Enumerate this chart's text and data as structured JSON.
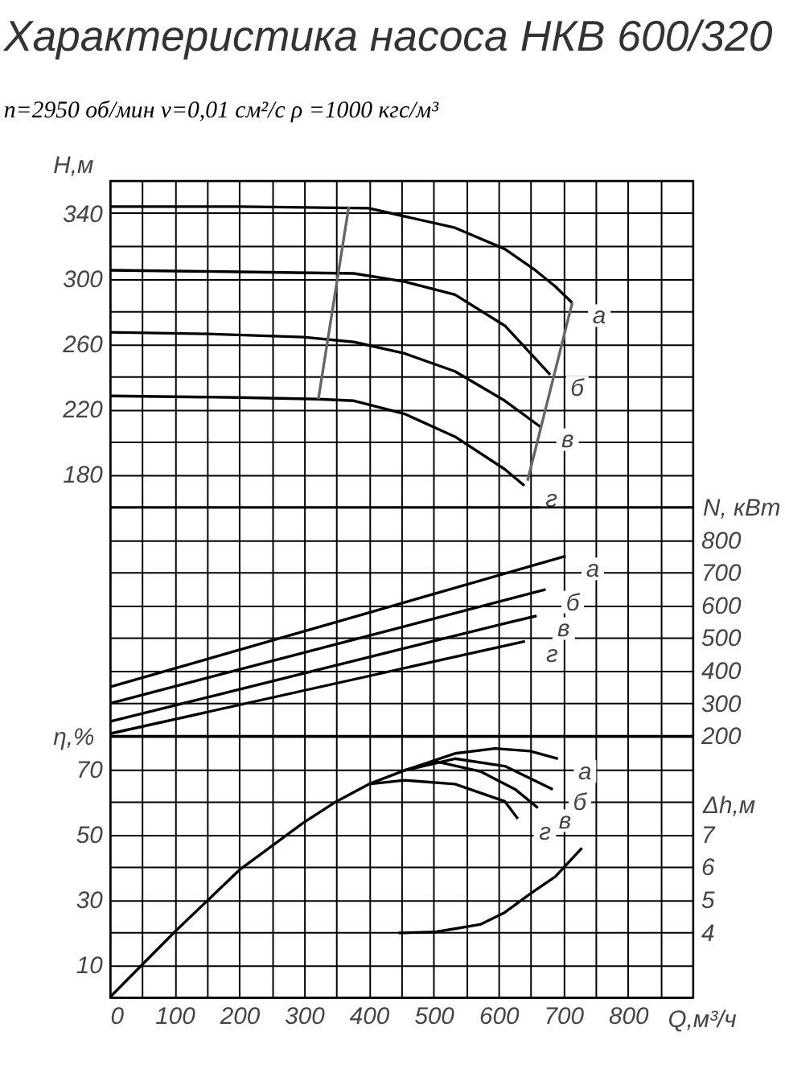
{
  "chart_data": [
    {
      "type": "line",
      "title": "Характеристика насоса НКВ 600/320",
      "subtitle": "n=2950 об/мин   ν=0,01 см²/с   ρ =1000 кгс/м³",
      "ylabel": "H,м",
      "xlim": [
        0,
        900
      ],
      "xticks": [
        0,
        {
          "value": 50,
          "label": null
        },
        100,
        {
          "value": 150,
          "label": null
        },
        200,
        {
          "value": 250,
          "label": null
        },
        300,
        {
          "value": 350,
          "label": null
        },
        400,
        {
          "value": 450,
          "label": null
        },
        500,
        {
          "value": 550,
          "label": null
        },
        600,
        {
          "value": 650,
          "label": null
        },
        700,
        {
          "value": 750,
          "label": null
        },
        800,
        {
          "value": 850,
          "label": null
        },
        {
          "value": 900,
          "label": null
        }
      ],
      "ylim": [
        160,
        360
      ],
      "yticks": [
        {
          "value": 160,
          "label": null
        },
        180,
        {
          "value": 200,
          "label": null
        },
        220,
        {
          "value": 240,
          "label": null
        },
        260,
        {
          "value": 280,
          "label": null
        },
        300,
        {
          "value": 320,
          "label": null
        },
        340,
        {
          "value": 360,
          "label": null
        }
      ],
      "grid": true,
      "tick_labels": "y",
      "marker": "none",
      "series": [
        {
          "name": "а",
          "color": "#000000",
          "x": [
            0,
            200,
            400,
            455,
            533,
            610,
            657,
            688,
            714
          ],
          "values": [
            344,
            344,
            343,
            338,
            331,
            318,
            305,
            295,
            285
          ]
        },
        {
          "name": "б",
          "color": "#000000",
          "x": [
            0,
            200,
            377,
            455,
            533,
            610,
            680
          ],
          "values": [
            305,
            304,
            303,
            298,
            290,
            271,
            241
          ]
        },
        {
          "name": "в",
          "color": "#000000",
          "x": [
            0,
            150,
            299,
            377,
            455,
            533,
            610,
            665
          ],
          "values": [
            267,
            266,
            264,
            261,
            254,
            243,
            225,
            209
          ]
        },
        {
          "name": "г",
          "color": "#000000",
          "x": [
            0,
            200,
            322,
            377,
            455,
            533,
            610,
            640
          ],
          "values": [
            228,
            227,
            226,
            225,
            217,
            203,
            183,
            173
          ]
        },
        {
          "color": "#666666",
          "x": [
            322,
            369
          ],
          "values": [
            226,
            344
          ]
        },
        {
          "color": "#666666",
          "x": [
            645,
            714
          ],
          "values": [
            176,
            285
          ]
        }
      ]
    },
    {
      "type": "line",
      "y2label": "N, кВт",
      "xlim": [
        0,
        900
      ],
      "xticks": [
        0,
        {
          "value": 50,
          "label": null
        },
        100,
        {
          "value": 150,
          "label": null
        },
        200,
        {
          "value": 250,
          "label": null
        },
        300,
        {
          "value": 350,
          "label": null
        },
        400,
        {
          "value": 450,
          "label": null
        },
        500,
        {
          "value": 550,
          "label": null
        },
        600,
        {
          "value": 650,
          "label": null
        },
        700,
        {
          "value": 750,
          "label": null
        },
        800,
        {
          "value": 850,
          "label": null
        },
        {
          "value": 900,
          "label": null
        }
      ],
      "y2lim": [
        200,
        900
      ],
      "y2ticks": [
        200,
        300,
        400,
        500,
        600,
        700,
        800,
        {
          "value": 900,
          "label": null
        }
      ],
      "grid": true,
      "tick_labels": "y",
      "marker": "none",
      "series": [
        {
          "name": "а",
          "color": "#000000",
          "axis": "y2",
          "x": [
            0,
            704
          ],
          "values": [
            348,
            749
          ]
        },
        {
          "name": "б",
          "color": "#000000",
          "axis": "y2",
          "x": [
            0,
            673
          ],
          "values": [
            298,
            647
          ]
        },
        {
          "name": "в",
          "color": "#000000",
          "axis": "y2",
          "x": [
            0,
            610,
            659
          ],
          "values": [
            242,
            543,
            566
          ]
        },
        {
          "name": "г",
          "color": "#000000",
          "axis": "y2",
          "x": [
            0,
            641
          ],
          "values": [
            205,
            488
          ]
        }
      ]
    },
    {
      "type": "line",
      "ylabel": "η,%",
      "y2label": "Δh,м",
      "xlabel": "Q,м³/ч",
      "xlim": [
        0,
        900
      ],
      "xticks": [
        0,
        {
          "value": 50,
          "label": null
        },
        100,
        {
          "value": 150,
          "label": null
        },
        200,
        {
          "value": 250,
          "label": null
        },
        300,
        {
          "value": 350,
          "label": null
        },
        400,
        {
          "value": 450,
          "label": null
        },
        500,
        {
          "value": 550,
          "label": null
        },
        600,
        {
          "value": 650,
          "label": null
        },
        700,
        {
          "value": 750,
          "label": null
        },
        800,
        {
          "value": 850,
          "label": null
        },
        {
          "value": 900,
          "label": null
        }
      ],
      "ylim": [
        0,
        80
      ],
      "yticks": [
        {
          "value": 0,
          "label": null
        },
        10,
        {
          "value": 20,
          "label": null
        },
        30,
        {
          "value": 40,
          "label": null
        },
        50,
        {
          "value": 60,
          "label": null
        },
        70,
        {
          "value": 80,
          "label": null
        }
      ],
      "y2lim": [
        2,
        10
      ],
      "y2ticks": [
        4,
        5,
        6,
        7
      ],
      "grid": true,
      "marker": "none",
      "series": [
        {
          "name": "а",
          "color": "#000000",
          "x": [
            0,
            100,
            150,
            200,
            299,
            350,
            400,
            455,
            533,
            595,
            649,
            692
          ],
          "values": [
            0,
            20,
            29.5,
            39,
            53.5,
            60,
            65.3,
            69.5,
            74.7,
            76.2,
            75.4,
            73.1
          ]
        },
        {
          "name": "б",
          "color": "#000000",
          "x": [
            455,
            533,
            610,
            684
          ],
          "values": [
            69.5,
            73.1,
            70.8,
            63.7
          ]
        },
        {
          "name": "в",
          "color": "#000000",
          "x": [
            455,
            503,
            572,
            626,
            661
          ],
          "values": [
            69.5,
            72.3,
            69.2,
            63.7,
            58
          ]
        },
        {
          "name": "г",
          "color": "#000000",
          "x": [
            400,
            455,
            533,
            610,
            630
          ],
          "values": [
            65.3,
            66.5,
            65.3,
            60,
            54.7
          ]
        },
        {
          "color": "#000000",
          "axis": "y2",
          "x": [
            446,
            503,
            572,
            610,
            649,
            688,
            729
          ],
          "values": [
            3.97,
            4.0,
            4.23,
            4.6,
            5.17,
            5.7,
            6.57
          ]
        }
      ]
    }
  ]
}
